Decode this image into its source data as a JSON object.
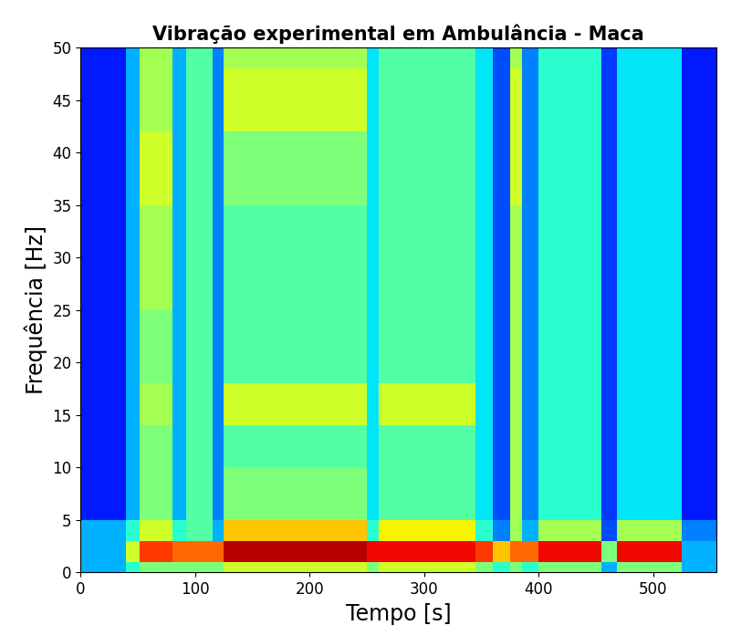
{
  "chart_data": {
    "type": "heatmap",
    "title": "Vibração experimental em Ambulância - Maca",
    "x_label": "Tempo [s]",
    "y_label": "Frequência [Hz]",
    "xlim": [
      0,
      555
    ],
    "ylim": [
      0,
      50
    ],
    "xticks": [
      0,
      100,
      200,
      300,
      400,
      500
    ],
    "yticks": [
      0,
      5,
      10,
      15,
      20,
      25,
      30,
      35,
      40,
      45,
      50
    ],
    "x_edges": [
      0,
      40,
      52,
      80,
      92,
      115,
      125,
      250,
      260,
      345,
      360,
      375,
      385,
      400,
      455,
      468,
      525,
      555
    ],
    "y_edges": [
      0,
      1,
      3,
      5,
      10,
      14,
      18,
      25,
      35,
      42,
      48,
      50
    ],
    "cell_range": [
      0,
      10
    ],
    "cells": [
      [
        3,
        4,
        5,
        5,
        5,
        5,
        6,
        5,
        6,
        5,
        4,
        5,
        4,
        5,
        3,
        5,
        3
      ],
      [
        3,
        6,
        8.5,
        8,
        8,
        8,
        9.5,
        9,
        9,
        8.5,
        7,
        8,
        8,
        9,
        5,
        9,
        3
      ],
      [
        3,
        4,
        6,
        4,
        4.5,
        3,
        7,
        4,
        6.5,
        4,
        2.5,
        5.5,
        3,
        5.5,
        2,
        5.5,
        2.5
      ],
      [
        1.5,
        3,
        5,
        3,
        4.5,
        2.5,
        5,
        3.5,
        4.5,
        3.5,
        2,
        5.5,
        2.5,
        4,
        1.8,
        3.5,
        1.5
      ],
      [
        1.5,
        3,
        5,
        3,
        4.5,
        2.5,
        4.5,
        3.5,
        4.5,
        3.5,
        2,
        5.5,
        2.5,
        4,
        1.8,
        3.5,
        1.5
      ],
      [
        1.5,
        3,
        5.5,
        3,
        4.5,
        2.5,
        6,
        3.5,
        6,
        3.5,
        2,
        5.5,
        2.5,
        4,
        1.8,
        3.5,
        1.5
      ],
      [
        1.5,
        3,
        5,
        3,
        4.5,
        2.5,
        4.5,
        3.5,
        4.5,
        3.5,
        2,
        5.5,
        2.5,
        4,
        1.8,
        3.5,
        1.5
      ],
      [
        1.5,
        3,
        5.5,
        3,
        4.5,
        2.5,
        4.5,
        3.5,
        4.5,
        3.5,
        2,
        5.5,
        2.5,
        4,
        1.8,
        3.5,
        1.5
      ],
      [
        1.5,
        3,
        6,
        3,
        4.5,
        2.5,
        5,
        3.5,
        4.5,
        3.5,
        2,
        6,
        2.5,
        4,
        1.8,
        3.5,
        1.5
      ],
      [
        1.5,
        3,
        5.5,
        3,
        4.5,
        2.5,
        6,
        3.5,
        4.5,
        3.5,
        2,
        6,
        2.5,
        4,
        1.8,
        3.5,
        1.5
      ],
      [
        1.5,
        3,
        5.5,
        3,
        4.5,
        2.5,
        5.5,
        3.5,
        4.5,
        3.5,
        2,
        5.5,
        2.5,
        4,
        1.8,
        3.5,
        1.5
      ]
    ]
  }
}
